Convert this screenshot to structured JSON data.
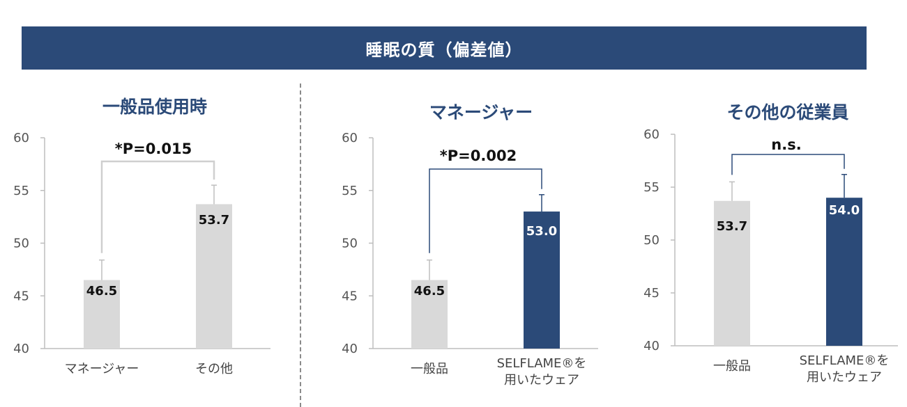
{
  "title": "睡眠の質（偏差値）",
  "colors": {
    "banner": "#2b4a78",
    "gray_bar": "#d9d9d9",
    "navy_bar": "#2b4a78"
  },
  "chart_data": [
    {
      "type": "bar",
      "title": "一般品使用時",
      "categories": [
        "マネージャー",
        "その他"
      ],
      "values": [
        46.5,
        53.7
      ],
      "error_upper": [
        48.4,
        55.5
      ],
      "bar_colors": [
        "#d9d9d9",
        "#d9d9d9"
      ],
      "ylim": [
        40,
        60
      ],
      "yticks": [
        40,
        45,
        50,
        55,
        60
      ],
      "annotation": "*P=0.015",
      "xlabel": "",
      "ylabel": ""
    },
    {
      "type": "bar",
      "title": "マネージャー",
      "categories": [
        "一般品",
        "SELFLAME®を用いたウェア"
      ],
      "values": [
        46.5,
        53.0
      ],
      "error_upper": [
        48.4,
        54.6
      ],
      "bar_colors": [
        "#d9d9d9",
        "#2b4a78"
      ],
      "ylim": [
        40,
        60
      ],
      "yticks": [
        40,
        45,
        50,
        55,
        60
      ],
      "annotation": "*P=0.002",
      "xlabel": "",
      "ylabel": ""
    },
    {
      "type": "bar",
      "title": "その他の従業員",
      "categories": [
        "一般品",
        "SELFLAME®を用いたウェア"
      ],
      "values": [
        53.7,
        54.0
      ],
      "error_upper": [
        55.5,
        56.2
      ],
      "bar_colors": [
        "#d9d9d9",
        "#2b4a78"
      ],
      "ylim": [
        40,
        60
      ],
      "yticks": [
        40,
        45,
        50,
        55,
        60
      ],
      "annotation": "n.s.",
      "xlabel": "",
      "ylabel": ""
    }
  ]
}
